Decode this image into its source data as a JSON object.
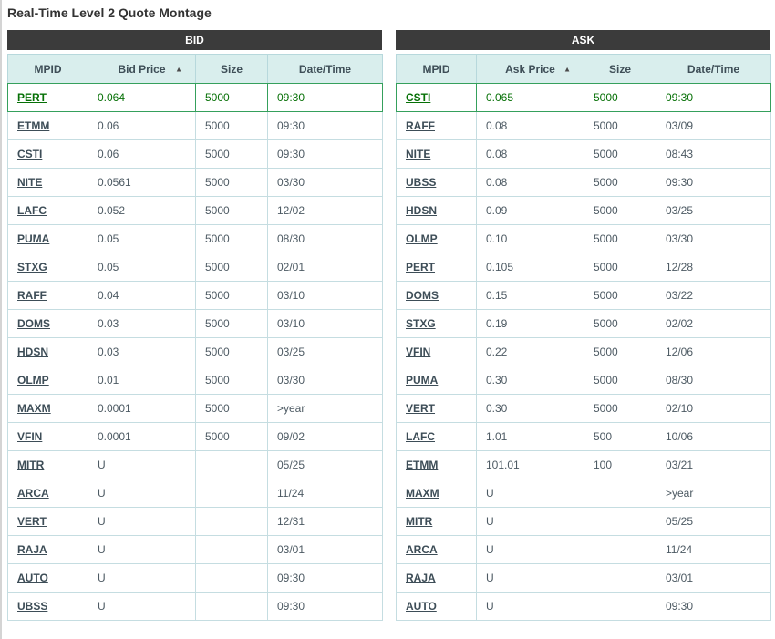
{
  "page": {
    "title": "Real-Time Level 2 Quote Montage"
  },
  "icons": {
    "sort_asc": "▲"
  },
  "colors": {
    "title_text": "#333333",
    "header_bar_bg": "#3b3b3b",
    "header_bar_text": "#ffffff",
    "column_header_bg": "#d9eeed",
    "column_header_text": "#3e4e57",
    "cell_text": "#4d5a63",
    "link_text": "#3d4d57",
    "table_border": "#c5dde1",
    "highlight_text": "#067006",
    "highlight_border": "#35a05c"
  },
  "tables": [
    {
      "id": "bid",
      "header": "BID",
      "columns": [
        "MPID",
        "Bid Price",
        "Size",
        "Date/Time"
      ],
      "sorted_column": "Bid Price",
      "sort_direction": "asc",
      "rows": [
        {
          "mpid": "PERT",
          "price": "0.064",
          "size": "5000",
          "datetime": "09:30",
          "highlight": true
        },
        {
          "mpid": "ETMM",
          "price": "0.06",
          "size": "5000",
          "datetime": "09:30"
        },
        {
          "mpid": "CSTI",
          "price": "0.06",
          "size": "5000",
          "datetime": "09:30"
        },
        {
          "mpid": "NITE",
          "price": "0.0561",
          "size": "5000",
          "datetime": "03/30"
        },
        {
          "mpid": "LAFC",
          "price": "0.052",
          "size": "5000",
          "datetime": "12/02"
        },
        {
          "mpid": "PUMA",
          "price": "0.05",
          "size": "5000",
          "datetime": "08/30"
        },
        {
          "mpid": "STXG",
          "price": "0.05",
          "size": "5000",
          "datetime": "02/01"
        },
        {
          "mpid": "RAFF",
          "price": "0.04",
          "size": "5000",
          "datetime": "03/10"
        },
        {
          "mpid": "DOMS",
          "price": "0.03",
          "size": "5000",
          "datetime": "03/10"
        },
        {
          "mpid": "HDSN",
          "price": "0.03",
          "size": "5000",
          "datetime": "03/25"
        },
        {
          "mpid": "OLMP",
          "price": "0.01",
          "size": "5000",
          "datetime": "03/30"
        },
        {
          "mpid": "MAXM",
          "price": "0.0001",
          "size": "5000",
          "datetime": ">year"
        },
        {
          "mpid": "VFIN",
          "price": "0.0001",
          "size": "5000",
          "datetime": "09/02"
        },
        {
          "mpid": "MITR",
          "price": "U",
          "size": "",
          "datetime": "05/25"
        },
        {
          "mpid": "ARCA",
          "price": "U",
          "size": "",
          "datetime": "11/24"
        },
        {
          "mpid": "VERT",
          "price": "U",
          "size": "",
          "datetime": "12/31"
        },
        {
          "mpid": "RAJA",
          "price": "U",
          "size": "",
          "datetime": "03/01"
        },
        {
          "mpid": "AUTO",
          "price": "U",
          "size": "",
          "datetime": "09:30"
        },
        {
          "mpid": "UBSS",
          "price": "U",
          "size": "",
          "datetime": "09:30"
        }
      ]
    },
    {
      "id": "ask",
      "header": "ASK",
      "columns": [
        "MPID",
        "Ask Price",
        "Size",
        "Date/Time"
      ],
      "sorted_column": "Ask Price",
      "sort_direction": "asc",
      "rows": [
        {
          "mpid": "CSTI",
          "price": "0.065",
          "size": "5000",
          "datetime": "09:30",
          "highlight": true
        },
        {
          "mpid": "RAFF",
          "price": "0.08",
          "size": "5000",
          "datetime": "03/09"
        },
        {
          "mpid": "NITE",
          "price": "0.08",
          "size": "5000",
          "datetime": "08:43"
        },
        {
          "mpid": "UBSS",
          "price": "0.08",
          "size": "5000",
          "datetime": "09:30"
        },
        {
          "mpid": "HDSN",
          "price": "0.09",
          "size": "5000",
          "datetime": "03/25"
        },
        {
          "mpid": "OLMP",
          "price": "0.10",
          "size": "5000",
          "datetime": "03/30"
        },
        {
          "mpid": "PERT",
          "price": "0.105",
          "size": "5000",
          "datetime": "12/28"
        },
        {
          "mpid": "DOMS",
          "price": "0.15",
          "size": "5000",
          "datetime": "03/22"
        },
        {
          "mpid": "STXG",
          "price": "0.19",
          "size": "5000",
          "datetime": "02/02"
        },
        {
          "mpid": "VFIN",
          "price": "0.22",
          "size": "5000",
          "datetime": "12/06"
        },
        {
          "mpid": "PUMA",
          "price": "0.30",
          "size": "5000",
          "datetime": "08/30"
        },
        {
          "mpid": "VERT",
          "price": "0.30",
          "size": "5000",
          "datetime": "02/10"
        },
        {
          "mpid": "LAFC",
          "price": "1.01",
          "size": "500",
          "datetime": "10/06"
        },
        {
          "mpid": "ETMM",
          "price": "101.01",
          "size": "100",
          "datetime": "03/21"
        },
        {
          "mpid": "MAXM",
          "price": "U",
          "size": "",
          "datetime": ">year"
        },
        {
          "mpid": "MITR",
          "price": "U",
          "size": "",
          "datetime": "05/25"
        },
        {
          "mpid": "ARCA",
          "price": "U",
          "size": "",
          "datetime": "11/24"
        },
        {
          "mpid": "RAJA",
          "price": "U",
          "size": "",
          "datetime": "03/01"
        },
        {
          "mpid": "AUTO",
          "price": "U",
          "size": "",
          "datetime": "09:30"
        }
      ]
    }
  ]
}
